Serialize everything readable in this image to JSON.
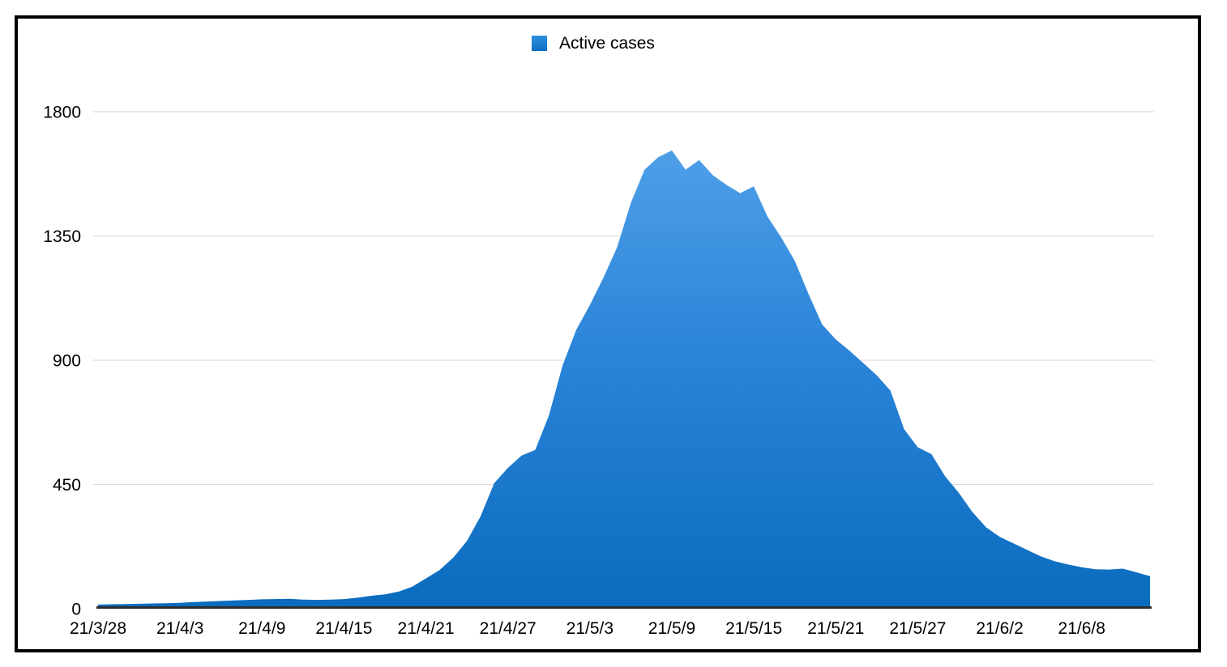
{
  "legend": {
    "label": "Active cases"
  },
  "colors": {
    "area_top": "#54a4ea",
    "area_mid": "#2a83d8",
    "area_bottom": "#0a6cbe",
    "legend_top": "#2f90e1",
    "legend_bottom": "#0d6ec1",
    "gridline": "#dcdcdc",
    "axis": "#2e2e2e",
    "text": "#000000"
  },
  "chart_data": {
    "type": "area",
    "title": "",
    "series_name": "Active cases",
    "legend_position": "top-center",
    "grid": true,
    "ylim": [
      0,
      1800
    ],
    "y_ticks": [
      0,
      450,
      900,
      1350,
      1800
    ],
    "x_tick_every": 6,
    "x_tick_labels": [
      "21/3/28",
      "21/4/3",
      "21/4/9",
      "21/4/15",
      "21/4/21",
      "21/4/27",
      "21/5/3",
      "21/5/9",
      "21/5/15",
      "21/5/21",
      "21/5/27",
      "21/6/2",
      "21/6/8"
    ],
    "x": [
      "21/3/28",
      "21/3/29",
      "21/3/30",
      "21/3/31",
      "21/4/1",
      "21/4/2",
      "21/4/3",
      "21/4/4",
      "21/4/5",
      "21/4/6",
      "21/4/7",
      "21/4/8",
      "21/4/9",
      "21/4/10",
      "21/4/11",
      "21/4/12",
      "21/4/13",
      "21/4/14",
      "21/4/15",
      "21/4/16",
      "21/4/17",
      "21/4/18",
      "21/4/19",
      "21/4/20",
      "21/4/21",
      "21/4/22",
      "21/4/23",
      "21/4/24",
      "21/4/25",
      "21/4/26",
      "21/4/27",
      "21/4/28",
      "21/4/29",
      "21/4/30",
      "21/5/1",
      "21/5/2",
      "21/5/3",
      "21/5/4",
      "21/5/5",
      "21/5/6",
      "21/5/7",
      "21/5/8",
      "21/5/9",
      "21/5/10",
      "21/5/11",
      "21/5/12",
      "21/5/13",
      "21/5/14",
      "21/5/15",
      "21/5/16",
      "21/5/17",
      "21/5/18",
      "21/5/19",
      "21/5/20",
      "21/5/21",
      "21/5/22",
      "21/5/23",
      "21/5/24",
      "21/5/25",
      "21/5/26",
      "21/5/27",
      "21/5/28",
      "21/5/29",
      "21/5/30",
      "21/5/31",
      "21/6/1",
      "21/6/2",
      "21/6/3",
      "21/6/4",
      "21/6/5",
      "21/6/6",
      "21/6/7",
      "21/6/8",
      "21/6/9",
      "21/6/10",
      "21/6/11",
      "21/6/12",
      "21/6/13"
    ],
    "values": [
      15,
      16,
      17,
      18,
      19,
      20,
      21,
      24,
      26,
      28,
      30,
      32,
      34,
      35,
      36,
      33,
      32,
      33,
      35,
      40,
      47,
      52,
      62,
      80,
      110,
      140,
      185,
      245,
      335,
      455,
      510,
      555,
      575,
      700,
      880,
      1010,
      1100,
      1200,
      1310,
      1470,
      1590,
      1635,
      1660,
      1590,
      1625,
      1570,
      1535,
      1505,
      1530,
      1420,
      1345,
      1260,
      1140,
      1030,
      975,
      935,
      890,
      845,
      790,
      650,
      585,
      560,
      480,
      420,
      350,
      295,
      260,
      237,
      213,
      190,
      172,
      160,
      150,
      143,
      142,
      145,
      132,
      118
    ]
  }
}
